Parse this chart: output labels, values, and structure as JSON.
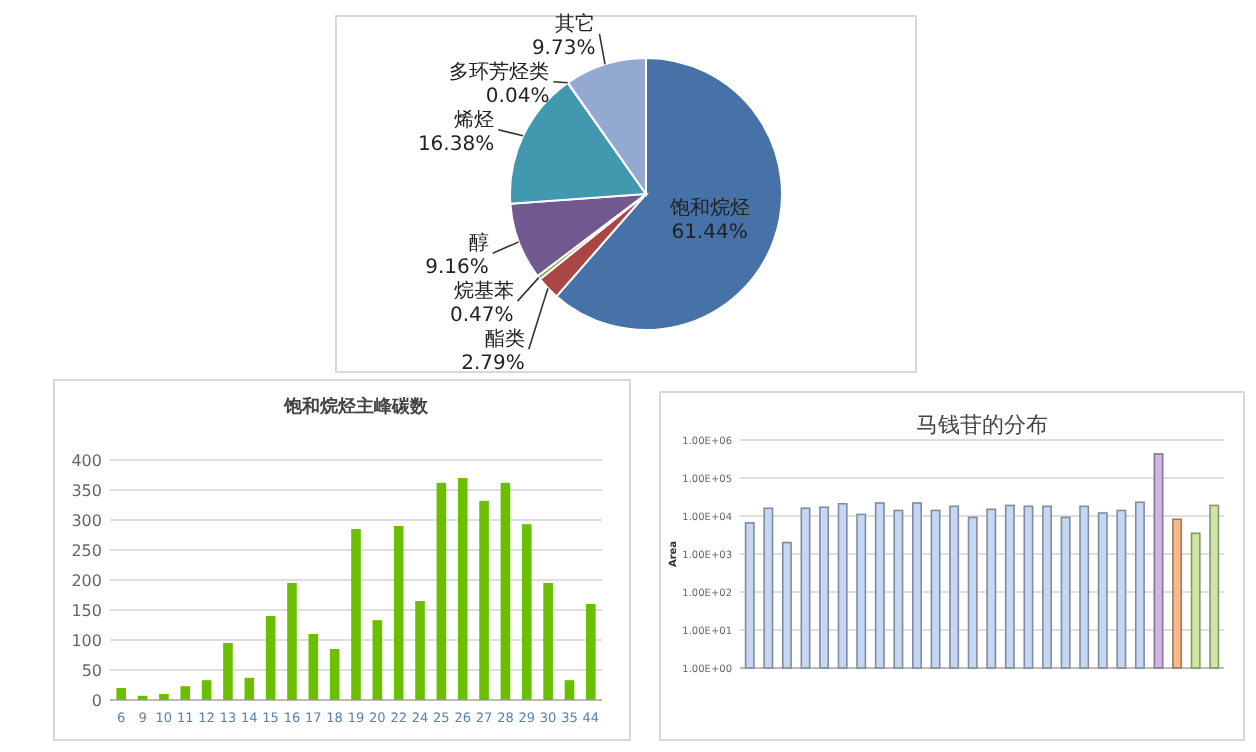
{
  "chart_data": [
    {
      "type": "pie",
      "categories": [
        "饱和烷烃",
        "酯类",
        "烷基苯",
        "醇",
        "烯烃",
        "多环芳烃类",
        "其它"
      ],
      "values": [
        61.44,
        2.79,
        0.47,
        9.16,
        16.38,
        0.04,
        9.73
      ],
      "colors": [
        "#4672a8",
        "#aa4643",
        "#89a54e",
        "#71588f",
        "#4198af",
        "#db843d",
        "#93a9cf"
      ],
      "value_labels": [
        "61.44%",
        "2.79%",
        "0.47%",
        "9.16%",
        "16.38%",
        "0.04%",
        "9.73%"
      ]
    },
    {
      "type": "bar",
      "title": "饱和烷烃主峰碳数",
      "categories": [
        "6",
        "9",
        "10",
        "11",
        "12",
        "13",
        "14",
        "15",
        "16",
        "17",
        "18",
        "19",
        "20",
        "22",
        "24",
        "25",
        "26",
        "27",
        "28",
        "29",
        "30",
        "35",
        "44"
      ],
      "values": [
        20,
        7,
        10,
        23,
        33,
        95,
        37,
        140,
        195,
        110,
        85,
        285,
        133,
        290,
        165,
        362,
        370,
        332,
        362,
        293,
        195,
        33,
        160
      ],
      "color": "#6bbf00",
      "ylim": [
        0,
        400
      ],
      "yticks": [
        0,
        50,
        100,
        150,
        200,
        250,
        300,
        350,
        400
      ],
      "grid": "y"
    },
    {
      "type": "bar",
      "title": "马钱苷的分布",
      "ylabel": "Area",
      "log": true,
      "categories": [
        null,
        null,
        null,
        null,
        null,
        null,
        null,
        null,
        null,
        null,
        null,
        null,
        null,
        null,
        null,
        null,
        null,
        null,
        null,
        null,
        null,
        null,
        null,
        null,
        null,
        null
      ],
      "values": [
        6600,
        16000,
        2000,
        16000,
        17000,
        21000,
        11000,
        22000,
        14000,
        22000,
        14000,
        18000,
        9200,
        15000,
        19000,
        18000,
        18000,
        9200,
        18000,
        12000,
        14000,
        23000,
        430000,
        8200,
        3500,
        19000
      ],
      "colors": [
        "#c5d7f2",
        "#c5d7f2",
        "#c5d7f2",
        "#c5d7f2",
        "#c5d7f2",
        "#c5d7f2",
        "#c5d7f2",
        "#c5d7f2",
        "#c5d7f2",
        "#c5d7f2",
        "#c5d7f2",
        "#c5d7f2",
        "#c5d7f2",
        "#c5d7f2",
        "#c5d7f2",
        "#c5d7f2",
        "#c5d7f2",
        "#c5d7f2",
        "#c5d7f2",
        "#c5d7f2",
        "#c5d7f2",
        "#c5d7f2",
        "#cdb6e3",
        "#f9b98a",
        "#cfe6a5",
        "#cfe6a5"
      ],
      "ylim": [
        1,
        1000000
      ],
      "yticks": [
        {
          "value": 1,
          "label": "1.00E+00"
        },
        {
          "value": 10,
          "label": "1.00E+01"
        },
        {
          "value": 100,
          "label": "1.00E+02"
        },
        {
          "value": 1000,
          "label": "1.00E+03"
        },
        {
          "value": 10000,
          "label": "1.00E+04"
        },
        {
          "value": 100000,
          "label": "1.00E+05"
        },
        {
          "value": 1000000,
          "label": "1.00E+06"
        }
      ],
      "grid": "y"
    }
  ]
}
